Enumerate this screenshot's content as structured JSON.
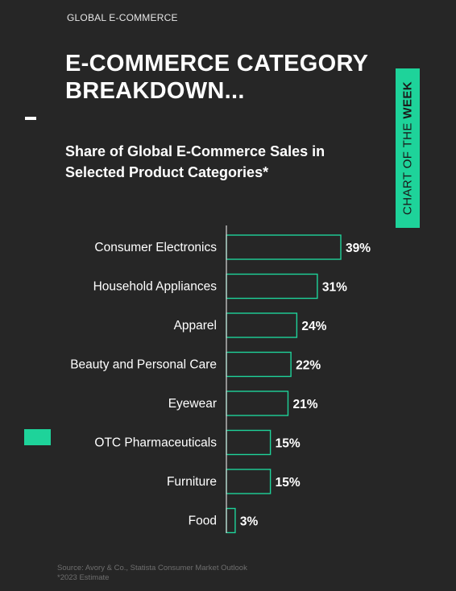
{
  "header": {
    "kicker": "GLOBAL E-COMMERCE",
    "title_line1": "E-COMMERCE CATEGORY",
    "title_line2": "BREAKDOWN..."
  },
  "side_tab": {
    "text_regular": "CHART OF THE ",
    "text_bold": "WEEK"
  },
  "colors": {
    "background": "#262626",
    "accent": "#1ed39a",
    "text": "#ffffff"
  },
  "chart_data": {
    "type": "bar",
    "orientation": "horizontal",
    "title_line1": "Share of Global E-Commerce Sales in",
    "title_line2": "Selected Product Categories*",
    "categories": [
      "Consumer Electronics",
      "Household Appliances",
      "Apparel",
      "Beauty and Personal Care",
      "Eyewear",
      "OTC Pharmaceuticals",
      "Furniture",
      "Food"
    ],
    "values": [
      39,
      31,
      24,
      22,
      21,
      15,
      15,
      3
    ],
    "labels": [
      "39%",
      "31%",
      "24%",
      "22%",
      "21%",
      "15%",
      "15%",
      "3%"
    ],
    "xlim": [
      0,
      40
    ],
    "grid": false
  },
  "footer": {
    "source": "Source: Avory & Co., Statista Consumer Market Outlook",
    "note": "*2023 Estimate"
  }
}
